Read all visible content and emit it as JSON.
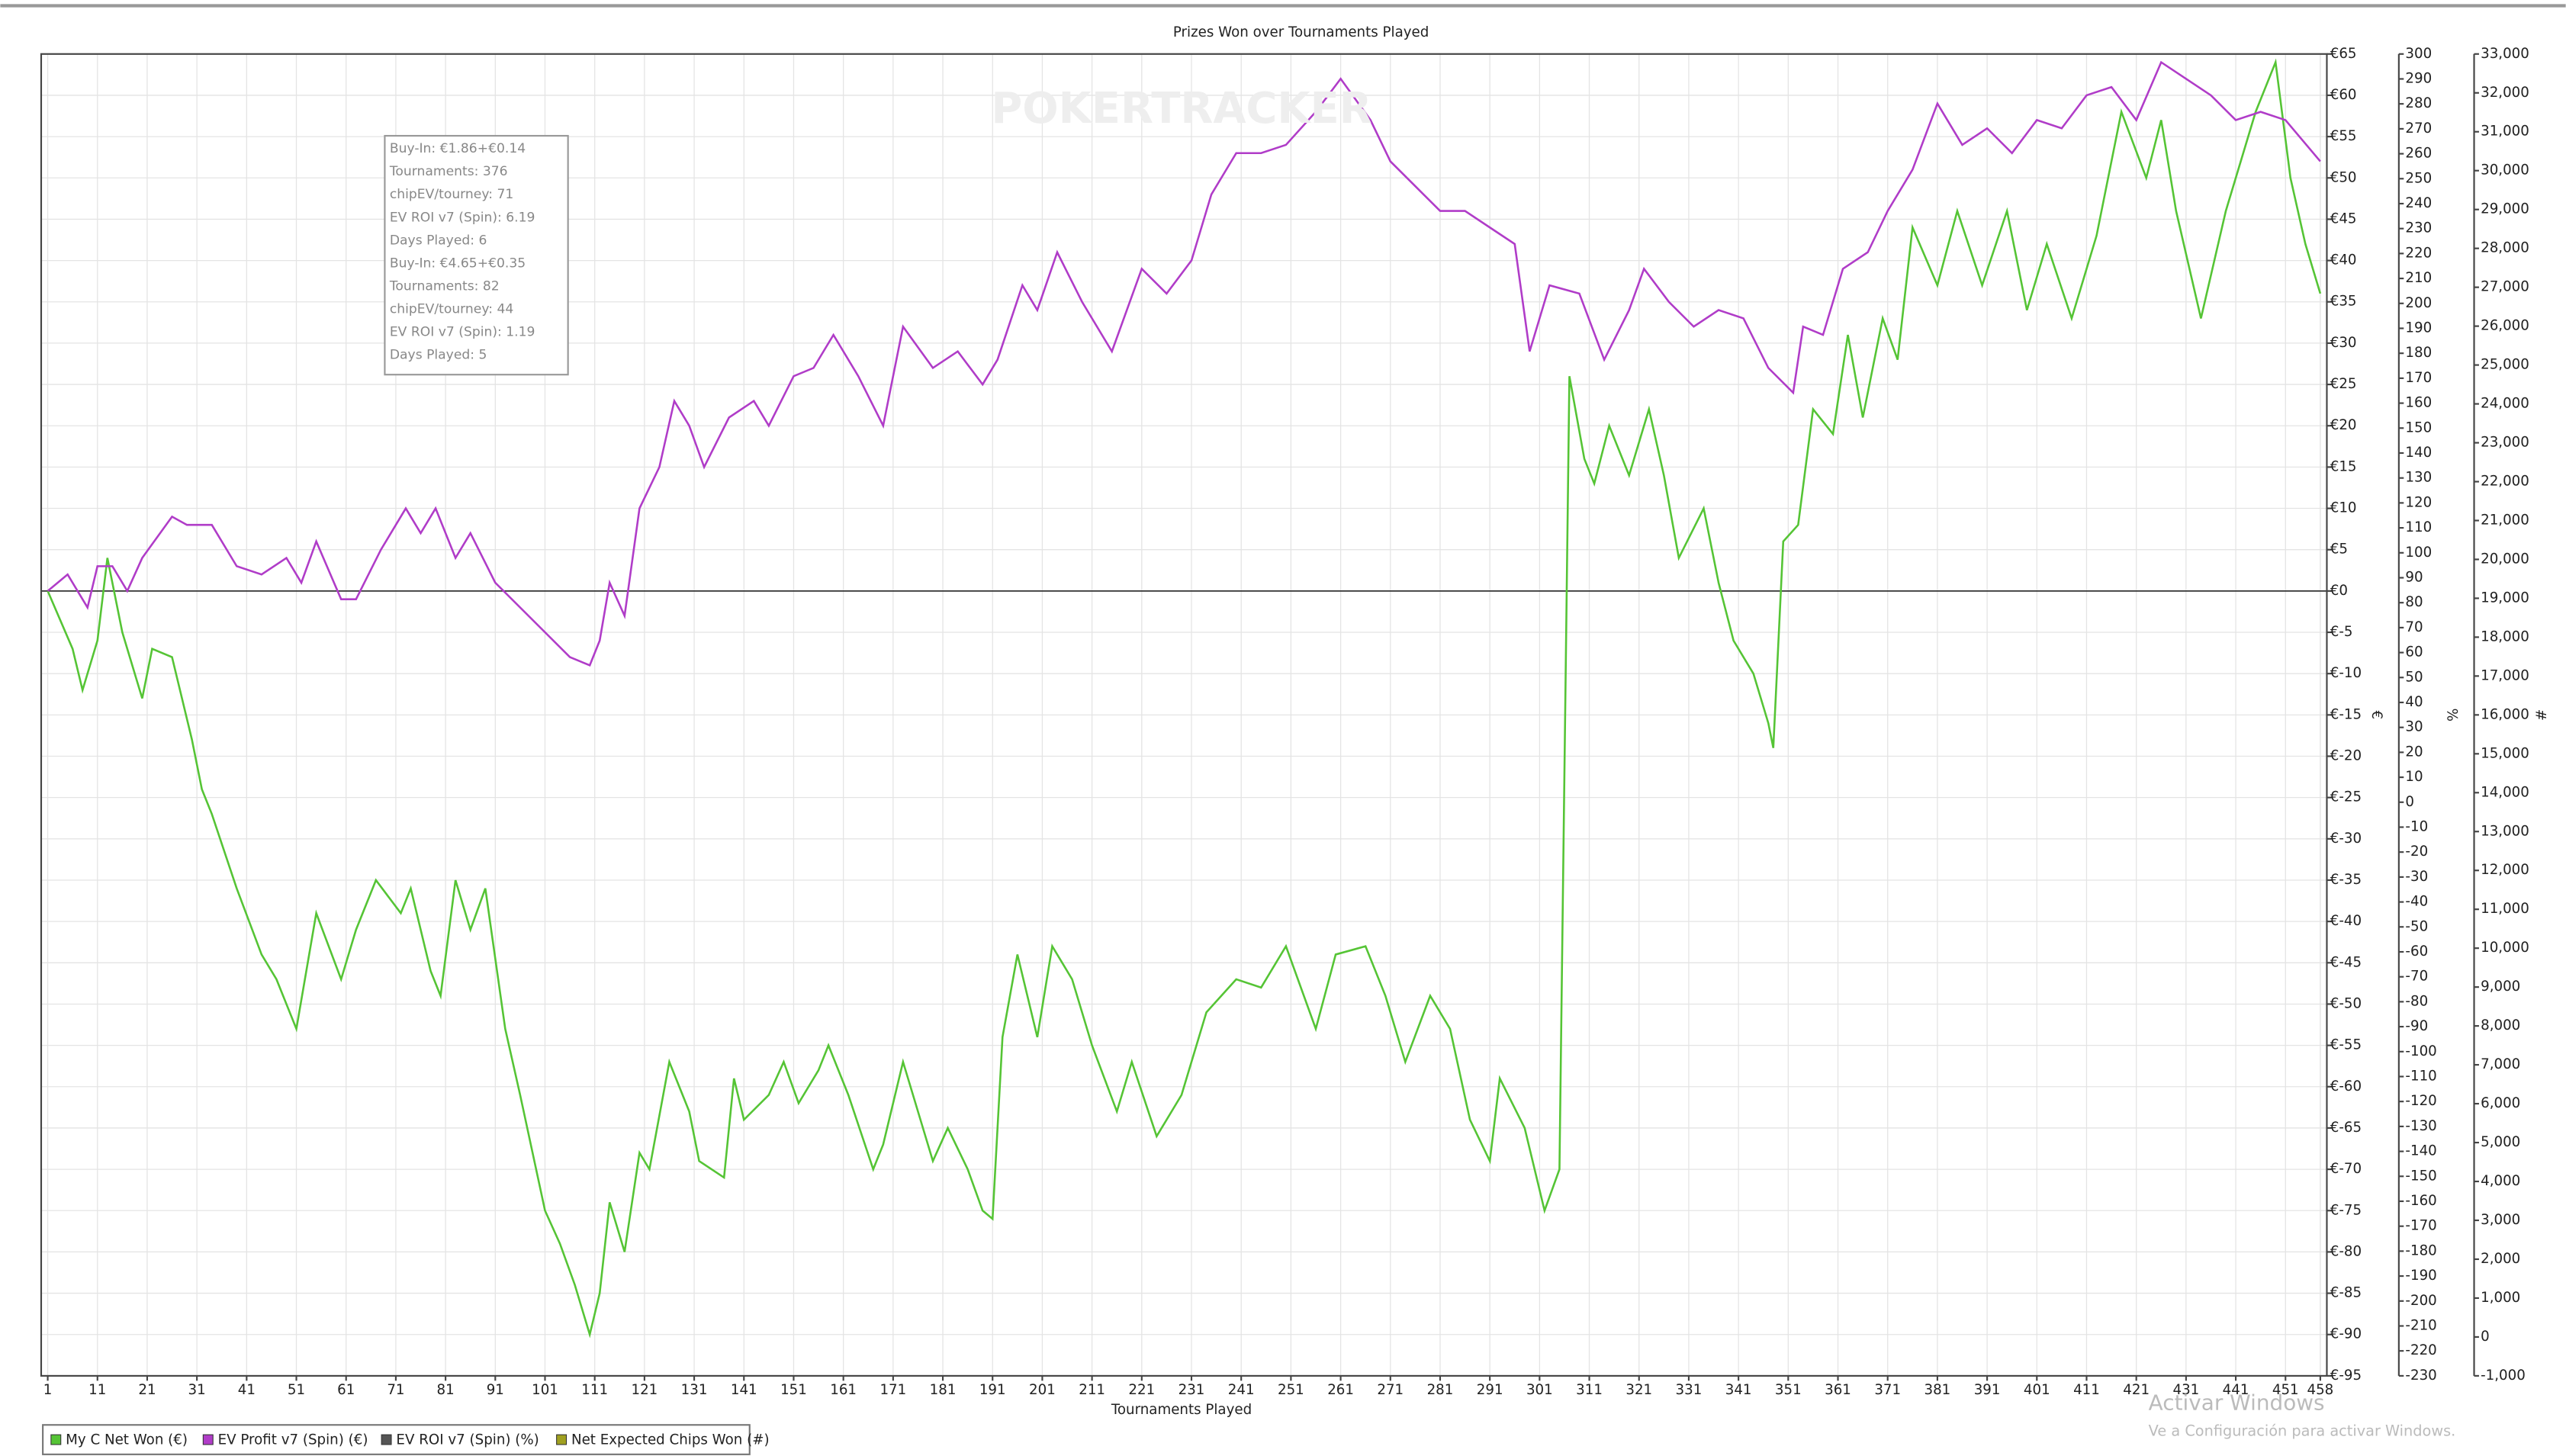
{
  "chart_data": {
    "type": "line",
    "title": "Prizes Won over Tournaments Played",
    "watermark": "POKERTRACKER",
    "xlabel": "Tournaments Played",
    "ylabel": "€",
    "y2label": "%",
    "y3label": "#",
    "grid": true,
    "xlim": [
      1,
      458
    ],
    "xticks": [
      1,
      11,
      21,
      31,
      41,
      51,
      61,
      71,
      81,
      91,
      101,
      111,
      121,
      131,
      141,
      151,
      161,
      171,
      181,
      191,
      201,
      211,
      221,
      231,
      241,
      251,
      261,
      271,
      281,
      291,
      301,
      311,
      321,
      331,
      341,
      351,
      361,
      371,
      381,
      391,
      401,
      411,
      421,
      431,
      441,
      451,
      458
    ],
    "ylim": [
      -95,
      65
    ],
    "yticks": [
      {
        "value": 65,
        "label": "€65"
      },
      {
        "value": 60,
        "label": "€60"
      },
      {
        "value": 55,
        "label": "€55"
      },
      {
        "value": 50,
        "label": "€50"
      },
      {
        "value": 45,
        "label": "€45"
      },
      {
        "value": 40,
        "label": "€40"
      },
      {
        "value": 35,
        "label": "€35"
      },
      {
        "value": 30,
        "label": "€30"
      },
      {
        "value": 25,
        "label": "€25"
      },
      {
        "value": 20,
        "label": "€20"
      },
      {
        "value": 15,
        "label": "€15"
      },
      {
        "value": 10,
        "label": "€10"
      },
      {
        "value": 5,
        "label": "€5"
      },
      {
        "value": 0,
        "label": "€0"
      },
      {
        "value": -5,
        "label": "€-5"
      },
      {
        "value": -10,
        "label": "€-10"
      },
      {
        "value": -15,
        "label": "€-15"
      },
      {
        "value": -20,
        "label": "€-20"
      },
      {
        "value": -25,
        "label": "€-25"
      },
      {
        "value": -30,
        "label": "€-30"
      },
      {
        "value": -35,
        "label": "€-35"
      },
      {
        "value": -40,
        "label": "€-40"
      },
      {
        "value": -45,
        "label": "€-45"
      },
      {
        "value": -50,
        "label": "€-50"
      },
      {
        "value": -55,
        "label": "€-55"
      },
      {
        "value": -60,
        "label": "€-60"
      },
      {
        "value": -65,
        "label": "€-65"
      },
      {
        "value": -70,
        "label": "€-70"
      },
      {
        "value": -75,
        "label": "€-75"
      },
      {
        "value": -80,
        "label": "€-80"
      },
      {
        "value": -85,
        "label": "€-85"
      },
      {
        "value": -90,
        "label": "€-90"
      },
      {
        "value": -95,
        "label": "€-95"
      }
    ],
    "y2lim": [
      -230,
      300
    ],
    "y2ticks": [
      300,
      290,
      280,
      270,
      260,
      250,
      240,
      230,
      220,
      210,
      200,
      190,
      180,
      170,
      160,
      150,
      140,
      130,
      120,
      110,
      100,
      90,
      80,
      70,
      60,
      50,
      40,
      30,
      20,
      10,
      0,
      -10,
      -20,
      -30,
      -40,
      -50,
      -60,
      -70,
      -80,
      -90,
      -100,
      -110,
      -120,
      -130,
      -140,
      -150,
      -160,
      -170,
      -180,
      -190,
      -200,
      -210,
      -220,
      -230
    ],
    "y3lim": [
      -1000,
      33000
    ],
    "y3ticks": [
      {
        "value": 33000,
        "label": "33,000"
      },
      {
        "value": 32000,
        "label": "32,000"
      },
      {
        "value": 31000,
        "label": "31,000"
      },
      {
        "value": 30000,
        "label": "30,000"
      },
      {
        "value": 29000,
        "label": "29,000"
      },
      {
        "value": 28000,
        "label": "28,000"
      },
      {
        "value": 27000,
        "label": "27,000"
      },
      {
        "value": 26000,
        "label": "26,000"
      },
      {
        "value": 25000,
        "label": "25,000"
      },
      {
        "value": 24000,
        "label": "24,000"
      },
      {
        "value": 23000,
        "label": "23,000"
      },
      {
        "value": 22000,
        "label": "22,000"
      },
      {
        "value": 21000,
        "label": "21,000"
      },
      {
        "value": 20000,
        "label": "20,000"
      },
      {
        "value": 19000,
        "label": "19,000"
      },
      {
        "value": 18000,
        "label": "18,000"
      },
      {
        "value": 17000,
        "label": "17,000"
      },
      {
        "value": 16000,
        "label": "16,000"
      },
      {
        "value": 15000,
        "label": "15,000"
      },
      {
        "value": 14000,
        "label": "14,000"
      },
      {
        "value": 13000,
        "label": "13,000"
      },
      {
        "value": 12000,
        "label": "12,000"
      },
      {
        "value": 11000,
        "label": "11,000"
      },
      {
        "value": 10000,
        "label": "10,000"
      },
      {
        "value": 9000,
        "label": "9,000"
      },
      {
        "value": 8000,
        "label": "8,000"
      },
      {
        "value": 7000,
        "label": "7,000"
      },
      {
        "value": 6000,
        "label": "6,000"
      },
      {
        "value": 5000,
        "label": "5,000"
      },
      {
        "value": 4000,
        "label": "4,000"
      },
      {
        "value": 3000,
        "label": "3,000"
      },
      {
        "value": 2000,
        "label": "2,000"
      },
      {
        "value": 1000,
        "label": "1,000"
      },
      {
        "value": 0,
        "label": "0"
      },
      {
        "value": -1000,
        "label": "-1,000"
      }
    ],
    "series": [
      {
        "name": "My C Net Won (€)",
        "color": "#55c435",
        "x": [
          1,
          6,
          8,
          11,
          13,
          16,
          20,
          22,
          26,
          30,
          32,
          34,
          39,
          44,
          47,
          51,
          55,
          60,
          63,
          67,
          72,
          74,
          78,
          80,
          83,
          86,
          89,
          93,
          96,
          101,
          104,
          107,
          110,
          112,
          114,
          117,
          120,
          122,
          126,
          130,
          132,
          137,
          139,
          141,
          146,
          149,
          152,
          156,
          158,
          162,
          167,
          169,
          173,
          177,
          179,
          182,
          186,
          189,
          191,
          193,
          196,
          200,
          203,
          207,
          211,
          216,
          219,
          224,
          229,
          234,
          240,
          245,
          250,
          256,
          260,
          266,
          270,
          274,
          279,
          283,
          287,
          291,
          293,
          298,
          302,
          305,
          307,
          310,
          312,
          315,
          319,
          323,
          326,
          329,
          334,
          337,
          340,
          344,
          347,
          348,
          350,
          353,
          356,
          360,
          363,
          366,
          370,
          373,
          376,
          381,
          385,
          390,
          395,
          399,
          403,
          408,
          413,
          418,
          423,
          426,
          429,
          434,
          439,
          445,
          449,
          452,
          455,
          458
        ],
        "values": [
          0,
          -7,
          -12,
          -6,
          4,
          -5,
          -13,
          -7,
          -8,
          -18,
          -24,
          -27,
          -36,
          -44,
          -47,
          -53,
          -39,
          -47,
          -41,
          -35,
          -39,
          -36,
          -46,
          -49,
          -35,
          -41,
          -36,
          -53,
          -61,
          -75,
          -79,
          -84,
          -90,
          -85,
          -74,
          -80,
          -68,
          -70,
          -57,
          -63,
          -69,
          -71,
          -59,
          -64,
          -61,
          -57,
          -62,
          -58,
          -55,
          -61,
          -70,
          -67,
          -57,
          -65,
          -69,
          -65,
          -70,
          -75,
          -76,
          -54,
          -44,
          -54,
          -43,
          -47,
          -55,
          -63,
          -57,
          -66,
          -61,
          -51,
          -47,
          -48,
          -43,
          -53,
          -44,
          -43,
          -49,
          -57,
          -49,
          -53,
          -64,
          -69,
          -59,
          -65,
          -75,
          -70,
          26,
          16,
          13,
          20,
          14,
          22,
          14,
          4,
          10,
          1,
          -6,
          -10,
          -16,
          -19,
          6,
          8,
          22,
          19,
          31,
          21,
          33,
          28,
          44,
          37,
          46,
          37,
          46,
          34,
          42,
          33,
          43,
          58,
          50,
          57,
          46,
          33,
          46,
          58,
          64,
          50,
          42,
          36
        ]
      },
      {
        "name": "EV Profit v7 (Spin) (€)",
        "color": "#b03cc8",
        "x": [
          1,
          5,
          9,
          11,
          14,
          17,
          20,
          26,
          29,
          34,
          39,
          44,
          49,
          52,
          55,
          60,
          63,
          68,
          73,
          76,
          79,
          83,
          86,
          91,
          96,
          101,
          106,
          110,
          112,
          114,
          117,
          120,
          124,
          127,
          130,
          133,
          138,
          143,
          146,
          151,
          155,
          159,
          164,
          169,
          173,
          179,
          184,
          189,
          192,
          197,
          200,
          204,
          209,
          215,
          221,
          226,
          231,
          235,
          240,
          245,
          250,
          256,
          261,
          267,
          271,
          276,
          281,
          286,
          291,
          296,
          299,
          303,
          309,
          314,
          319,
          322,
          327,
          332,
          337,
          342,
          347,
          352,
          354,
          358,
          362,
          367,
          371,
          376,
          381,
          386,
          391,
          396,
          401,
          406,
          411,
          416,
          421,
          426,
          431,
          436,
          441,
          446,
          451,
          458
        ],
        "values": [
          0,
          2,
          -2,
          3,
          3,
          0,
          4,
          9,
          8,
          8,
          3,
          2,
          4,
          1,
          6,
          -1,
          -1,
          5,
          10,
          7,
          10,
          4,
          7,
          1,
          -2,
          -5,
          -8,
          -9,
          -6,
          1,
          -3,
          10,
          15,
          23,
          20,
          15,
          21,
          23,
          20,
          26,
          27,
          31,
          26,
          20,
          32,
          27,
          29,
          25,
          28,
          37,
          34,
          41,
          35,
          29,
          39,
          36,
          40,
          48,
          53,
          53,
          54,
          58,
          62,
          57,
          52,
          49,
          46,
          46,
          44,
          42,
          29,
          37,
          36,
          28,
          34,
          39,
          35,
          32,
          34,
          33,
          27,
          24,
          32,
          31,
          39,
          41,
          46,
          51,
          59,
          54,
          56,
          53,
          57,
          56,
          60,
          61,
          57,
          64,
          62,
          60,
          57,
          58,
          57,
          52
        ]
      },
      {
        "name": "EV ROI v7 (Spin) (%)",
        "color": "#555555",
        "x": [],
        "values": []
      },
      {
        "name": "Net Expected Chips Won (#)",
        "color": "#a0a020",
        "x": [],
        "values": []
      }
    ],
    "annotation_box": [
      "Buy-In: €1.86+€0.14",
      "Tournaments: 376",
      "chipEV/tourney: 71",
      "EV ROI v7 (Spin): 6.19",
      "Days Played: 6",
      "Buy-In: €4.65+€0.35",
      "Tournaments: 82",
      "chipEV/tourney: 44",
      "EV ROI v7 (Spin): 1.19",
      "Days Played: 5"
    ],
    "os_overlay": [
      "Activar Windows",
      "Ve a Configuración para activar Windows."
    ]
  }
}
